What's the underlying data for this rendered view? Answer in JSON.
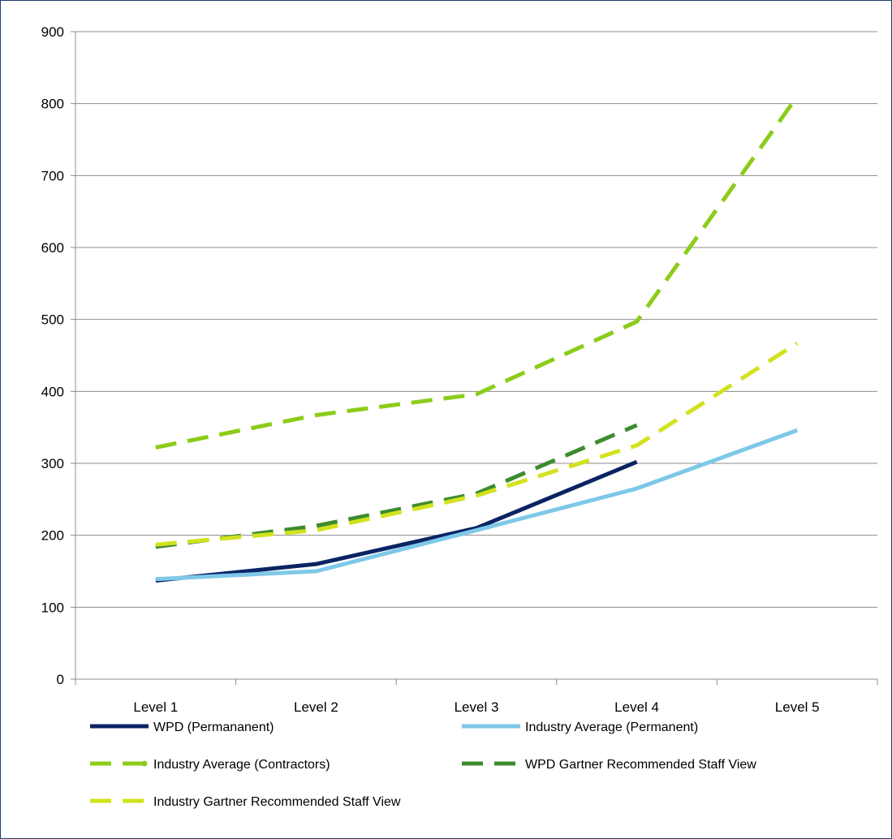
{
  "chart_data": {
    "type": "line",
    "title": "",
    "xlabel": "",
    "ylabel": "",
    "categories": [
      "Level 1",
      "Level 2",
      "Level 3",
      "Level 4",
      "Level 5"
    ],
    "ylim": [
      0,
      900
    ],
    "yticks": [
      0,
      100,
      200,
      300,
      400,
      500,
      600,
      700,
      800,
      900
    ],
    "grid": "horizontal",
    "legend_position": "bottom",
    "series": [
      {
        "name": "WPD  (Permananent)",
        "values": [
          137,
          160,
          210,
          302,
          null
        ],
        "color": "#0a2463",
        "style": "solid"
      },
      {
        "name": "Industry Average (Permanent)",
        "values": [
          139,
          150,
          207,
          265,
          346
        ],
        "color": "#7ec8e8",
        "style": "solid"
      },
      {
        "name": "Industry Average (Contractors)",
        "values": [
          322,
          367,
          396,
          497,
          810
        ],
        "color": "#8ccc1a",
        "style": "dashed"
      },
      {
        "name": "WPD Gartner Recommended Staff View",
        "values": [
          184,
          213,
          258,
          353,
          null
        ],
        "color": "#3c8c2e",
        "style": "dashed"
      },
      {
        "name": "Industry Gartner Recommended Staff View",
        "values": [
          187,
          207,
          255,
          325,
          467
        ],
        "color": "#d2e21e",
        "style": "dashed"
      }
    ]
  }
}
